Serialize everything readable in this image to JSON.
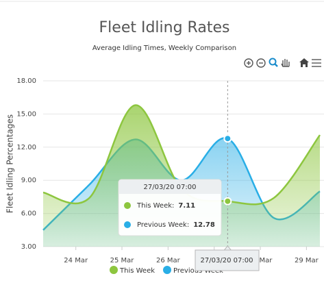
{
  "chart_data": {
    "type": "area",
    "title": "Fleet Idling Rates",
    "subtitle": "Average Idling Times, Weekly Comparison",
    "y_label": "Fleet Idling Percentages",
    "x": [
      "23/03/20 07:00",
      "24/03/20 07:00",
      "25/03/20 07:00",
      "26/03/20 07:00",
      "27/03/20 07:00",
      "28/03/20 07:00",
      "29/03/20 07:00"
    ],
    "series": [
      {
        "name": "This Week",
        "color": "#8dc63f",
        "values": [
          7.9,
          7.4,
          15.8,
          8.2,
          7.11,
          7.4,
          13.1
        ]
      },
      {
        "name": "Previous Week",
        "color": "#29aee6",
        "values": [
          4.5,
          8.6,
          12.7,
          9.0,
          12.78,
          5.6,
          8.0
        ]
      }
    ],
    "xlim": [
      "23/03/20 07:00",
      "29/03/20 07:00"
    ],
    "xticks": [
      {
        "value": "24/03/20 00:00",
        "label": "24 Mar"
      },
      {
        "value": "25/03/20 00:00",
        "label": "25 Mar"
      },
      {
        "value": "26/03/20 00:00",
        "label": "26 Mar"
      },
      {
        "value": "27/03/20 00:00",
        "label": "27 Mar"
      },
      {
        "value": "28/03/20 00:00",
        "label": "28 Mar"
      },
      {
        "value": "29/03/20 00:00",
        "label": "29 Mar"
      }
    ],
    "ylim": [
      3,
      18
    ],
    "yticks": [
      {
        "value": 3,
        "label": "3.00"
      },
      {
        "value": 6,
        "label": "6.00"
      },
      {
        "value": 9,
        "label": "9.00"
      },
      {
        "value": 12,
        "label": "12.00"
      },
      {
        "value": 15,
        "label": "15.00"
      },
      {
        "value": 18,
        "label": "18.00"
      }
    ],
    "grid": true,
    "legend": "bottom",
    "tooltip_index": 4
  }
}
